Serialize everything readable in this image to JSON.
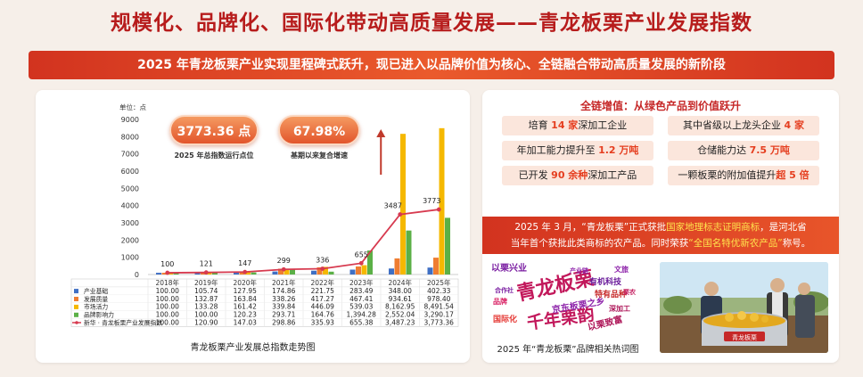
{
  "header": {
    "title": "规模化、品牌化、国际化带动高质量发展——青龙板栗产业发展指数",
    "subtitle": "2025 年青龙板栗产业实现里程碑式跃升，现已进入以品牌价值为核心、全链融合带动高质量发展的新阶段"
  },
  "kpis": [
    {
      "value": "3773.36 点",
      "label": "2025 年总指数运行点位"
    },
    {
      "value": "67.98%",
      "label": "基期以来复合增速"
    }
  ],
  "chart_data": {
    "type": "bar",
    "title": "青龙板栗产业发展总指数走势图",
    "unit_label": "单位：点",
    "categories": [
      "2018年",
      "2019年",
      "2020年",
      "2021年",
      "2022年",
      "2023年",
      "2024年",
      "2025年"
    ],
    "ylim": [
      0,
      9000
    ],
    "yticks": [
      0,
      1000,
      2000,
      3000,
      4000,
      5000,
      6000,
      7000,
      8000,
      9000
    ],
    "series": [
      {
        "name": "产业基础",
        "type": "bar",
        "color": "#3f6fc4",
        "values": [
          100.0,
          105.74,
          127.95,
          174.86,
          221.75,
          283.49,
          348.0,
          402.33
        ],
        "labels": [
          "100.00",
          "105.74",
          "127.95",
          "174.86",
          "221.75",
          "283.49",
          "348.00",
          "402.33"
        ]
      },
      {
        "name": "发展质量",
        "type": "bar",
        "color": "#ef7d31",
        "values": [
          100.0,
          132.87,
          163.84,
          338.26,
          417.27,
          467.41,
          934.61,
          978.4
        ],
        "labels": [
          "100.00",
          "132.87",
          "163.84",
          "338.26",
          "417.27",
          "467.41",
          "934.61",
          "978.40"
        ]
      },
      {
        "name": "市场活力",
        "type": "bar",
        "color": "#f5b800",
        "values": [
          100.0,
          133.28,
          161.42,
          339.84,
          446.09,
          539.03,
          8162.95,
          8491.54
        ],
        "labels": [
          "100.00",
          "133.28",
          "161.42",
          "339.84",
          "446.09",
          "539.03",
          "8,162.95",
          "8,491.54"
        ]
      },
      {
        "name": "品牌影响力",
        "type": "bar",
        "color": "#5bb047",
        "values": [
          100.0,
          100.0,
          120.23,
          293.71,
          164.76,
          1394.28,
          2552.04,
          3290.17
        ],
        "labels": [
          "100.00",
          "100.00",
          "120.23",
          "293.71",
          "164.76",
          "1,394.28",
          "2,552.04",
          "3,290.17"
        ]
      },
      {
        "name": "新华 · 青龙板栗产业发展指数",
        "type": "line",
        "color": "#d73a4f",
        "values": [
          100.0,
          120.9,
          147.03,
          298.86,
          335.93,
          655.38,
          3487.23,
          3773.36
        ],
        "labels": [
          "100.00",
          "120.90",
          "147.03",
          "298.86",
          "335.93",
          "655.38",
          "3,487.23",
          "3,773.36"
        ],
        "point_labels": [
          "100",
          "121",
          "147",
          "299",
          "336",
          "655",
          "3487",
          "3773"
        ]
      }
    ]
  },
  "right": {
    "title": "全链增值：从绿色产品到价值跃升",
    "tags": [
      [
        {
          "t": "培育 "
        },
        {
          "t": "14 家",
          "hl": true
        },
        {
          "t": "深加工企业"
        }
      ],
      [
        {
          "t": "其中省级以上龙头企业 "
        },
        {
          "t": "4 家",
          "hl": true
        }
      ],
      [
        {
          "t": "年加工能力提升至 "
        },
        {
          "t": "1.2 万吨",
          "hl": true
        }
      ],
      [
        {
          "t": "仓储能力达 "
        },
        {
          "t": "7.5 万吨",
          "hl": true
        }
      ],
      [
        {
          "t": "已开发 "
        },
        {
          "t": "90 余种",
          "hl": true
        },
        {
          "t": "深加工产品"
        }
      ],
      [
        {
          "t": "一颗板栗的附加值提升"
        },
        {
          "t": "超 5 倍",
          "hl": true
        }
      ]
    ],
    "news_line1_a": "2025 年 3 月，“青龙板栗”正式获批",
    "news_line1_hl": "国家地理标志证明商标",
    "news_line1_b": "，是河北省",
    "news_line2_a": "当年首个获批此类商标的农产品。同时荣获",
    "news_line2_hl": "“全国名特优新农产品”",
    "news_line2_b": "称号。",
    "wordcloud_caption": "2025 年“青龙板栗”品牌相关热词图",
    "wordcloud": [
      {
        "text": "青龙板栗",
        "color": "#c2185b",
        "size": 22
      },
      {
        "text": "千年栗韵",
        "color": "#c2185b",
        "size": 19
      },
      {
        "text": "以栗兴业",
        "color": "#7b1fa2",
        "size": 10
      },
      {
        "text": "京东板栗之乡",
        "color": "#8e24aa",
        "size": 10
      },
      {
        "text": "以栗致富",
        "color": "#ad1457",
        "size": 10
      },
      {
        "text": "有机科技",
        "color": "#6a1b9a",
        "size": 9
      },
      {
        "text": "特有品种",
        "color": "#c62828",
        "size": 9
      },
      {
        "text": "国际化",
        "color": "#e53935",
        "size": 9
      },
      {
        "text": "文旅",
        "color": "#8e24aa",
        "size": 8
      },
      {
        "text": "品牌",
        "color": "#d81b60",
        "size": 8
      },
      {
        "text": "深加工",
        "color": "#ad1457",
        "size": 8
      },
      {
        "text": "合作社",
        "color": "#7b1fa2",
        "size": 7
      },
      {
        "text": "栗农",
        "color": "#c2185b",
        "size": 7
      },
      {
        "text": "产业链",
        "color": "#8e24aa",
        "size": 7
      }
    ],
    "photo_banner": "青龙板栗"
  }
}
